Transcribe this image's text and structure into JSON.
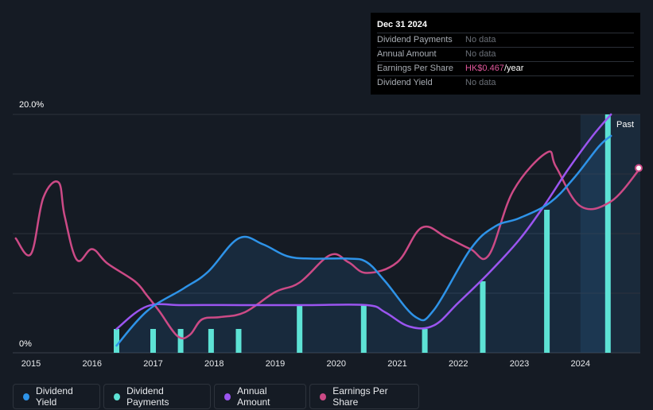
{
  "tooltip": {
    "date": "Dec 31 2024",
    "rows": [
      {
        "label": "Dividend Payments",
        "value": "No data"
      },
      {
        "label": "Annual Amount",
        "value": "No data"
      },
      {
        "label": "Earnings Per Share",
        "value_accent": "HK$0.467",
        "value_suffix": "/year"
      },
      {
        "label": "Dividend Yield",
        "value": "No data"
      }
    ]
  },
  "legend": {
    "dividend_yield": "Dividend Yield",
    "dividend_payments": "Dividend Payments",
    "annual_amount": "Annual Amount",
    "earnings_per_share": "Earnings Per Share"
  },
  "colors": {
    "background": "#151b24",
    "dividend_yield": "#2e93e8",
    "dividend_payments": "#5de2d5",
    "annual_amount": "#9b55f0",
    "earnings_per_share": "#cc4a86",
    "grid": "#2d333c",
    "past_shade": "#1d3a55"
  },
  "chart_data": {
    "type": "line",
    "y_top_label": "20.0%",
    "y_bottom_label": "0%",
    "past_label": "Past",
    "ylim": [
      0,
      20
    ],
    "xlim": [
      2014.7,
      2024.98
    ],
    "x_ticks": [
      "2015",
      "2016",
      "2017",
      "2018",
      "2019",
      "2020",
      "2021",
      "2022",
      "2023",
      "2024"
    ],
    "past_region_start": 2024.0,
    "series": [
      {
        "name": "Dividend Yield",
        "unit": "%",
        "points": [
          [
            2016.4,
            0.6
          ],
          [
            2016.9,
            3.5
          ],
          [
            2017.5,
            5.4
          ],
          [
            2017.9,
            6.8
          ],
          [
            2018.4,
            9.6
          ],
          [
            2018.8,
            9.1
          ],
          [
            2019.2,
            8.1
          ],
          [
            2019.6,
            7.9
          ],
          [
            2020.2,
            7.9
          ],
          [
            2020.5,
            7.6
          ],
          [
            2020.8,
            6.0
          ],
          [
            2021.3,
            3.0
          ],
          [
            2021.6,
            3.6
          ],
          [
            2022.2,
            8.7
          ],
          [
            2022.6,
            10.6
          ],
          [
            2023.0,
            11.3
          ],
          [
            2023.5,
            12.6
          ],
          [
            2023.9,
            14.7
          ],
          [
            2024.3,
            17.3
          ],
          [
            2024.5,
            18.2
          ]
        ]
      },
      {
        "name": "Annual Amount",
        "points": [
          [
            2016.4,
            2.0
          ],
          [
            2016.9,
            3.9
          ],
          [
            2017.5,
            4.0
          ],
          [
            2018.5,
            4.0
          ],
          [
            2019.5,
            4.0
          ],
          [
            2020.5,
            4.0
          ],
          [
            2020.8,
            3.4
          ],
          [
            2021.2,
            2.2
          ],
          [
            2021.6,
            2.3
          ],
          [
            2022.0,
            4.2
          ],
          [
            2022.5,
            6.7
          ],
          [
            2023.0,
            9.5
          ],
          [
            2023.4,
            12.3
          ],
          [
            2023.8,
            15.4
          ],
          [
            2024.2,
            18.2
          ],
          [
            2024.5,
            20.0
          ]
        ]
      },
      {
        "name": "Earnings Per Share",
        "points": [
          [
            2014.75,
            9.6
          ],
          [
            2015.0,
            8.3
          ],
          [
            2015.2,
            13.0
          ],
          [
            2015.45,
            14.3
          ],
          [
            2015.55,
            11.5
          ],
          [
            2015.75,
            7.8
          ],
          [
            2016.0,
            8.7
          ],
          [
            2016.25,
            7.5
          ],
          [
            2016.7,
            6.0
          ],
          [
            2016.9,
            4.8
          ],
          [
            2017.1,
            3.5
          ],
          [
            2017.4,
            1.4
          ],
          [
            2017.6,
            1.5
          ],
          [
            2017.8,
            2.8
          ],
          [
            2018.1,
            3.0
          ],
          [
            2018.5,
            3.4
          ],
          [
            2019.0,
            5.1
          ],
          [
            2019.4,
            5.9
          ],
          [
            2019.9,
            8.2
          ],
          [
            2020.2,
            7.6
          ],
          [
            2020.5,
            6.7
          ],
          [
            2021.0,
            7.6
          ],
          [
            2021.4,
            10.5
          ],
          [
            2021.8,
            9.7
          ],
          [
            2022.2,
            8.7
          ],
          [
            2022.5,
            8.2
          ],
          [
            2022.9,
            13.6
          ],
          [
            2023.45,
            16.8
          ],
          [
            2023.6,
            15.6
          ],
          [
            2024.0,
            12.3
          ],
          [
            2024.5,
            12.7
          ],
          [
            2024.98,
            15.5
          ]
        ]
      }
    ],
    "bars": {
      "name": "Dividend Payments",
      "x": [
        2016.4,
        2017.0,
        2017.45,
        2017.95,
        2018.4,
        2019.4,
        2020.45,
        2021.45,
        2022.4,
        2023.45,
        2024.45
      ],
      "values": [
        2.0,
        2.0,
        2.0,
        2.0,
        2.0,
        4.0,
        4.0,
        2.0,
        6.0,
        12.0,
        20.0
      ]
    }
  }
}
